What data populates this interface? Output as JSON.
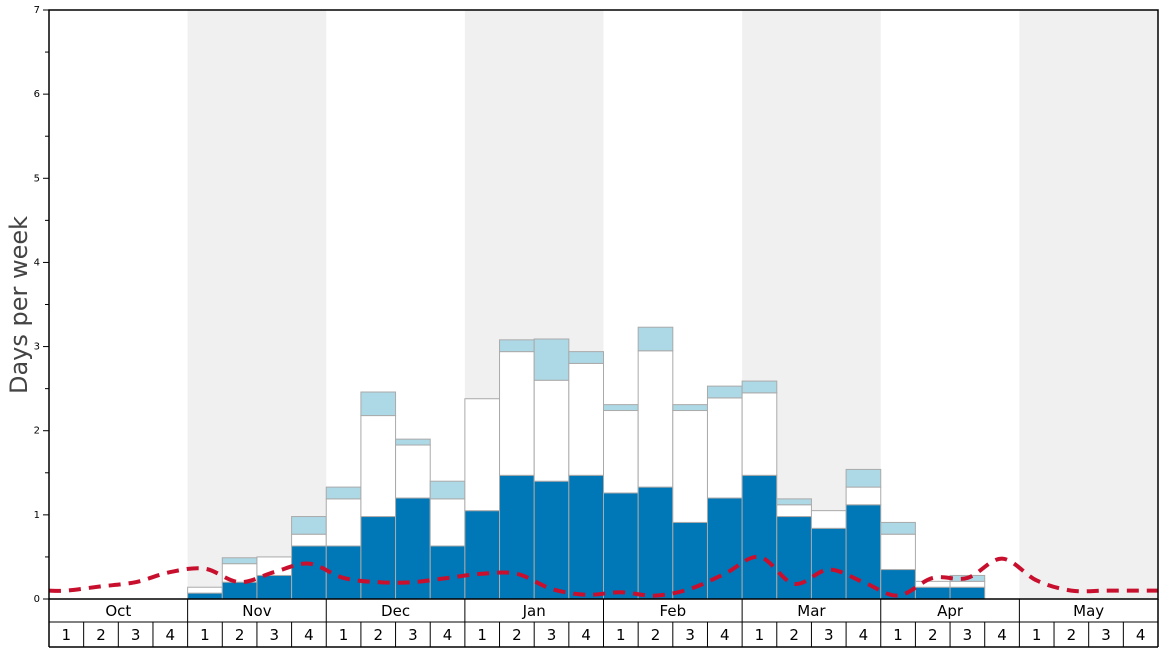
{
  "chart_data": {
    "type": "bar",
    "ylabel": "Days per week",
    "ylim": [
      0,
      7
    ],
    "yticks": [
      "0",
      "1",
      "2",
      "3",
      "4",
      "5",
      "6",
      "7"
    ],
    "months": [
      "Oct",
      "Nov",
      "Dec",
      "Jan",
      "Feb",
      "Mar",
      "Apr",
      "May"
    ],
    "weeks": [
      "1",
      "2",
      "3",
      "4"
    ],
    "shaded_months": [
      "Nov",
      "Jan",
      "Mar",
      "May"
    ],
    "colors": {
      "dark_series": "#0077b6",
      "white_series": "#ffffff",
      "light_series": "#add8e6",
      "line": "#c8102e",
      "shade": "#f0f0f0"
    },
    "series": [
      {
        "values": [
          0,
          0,
          0,
          0,
          0.07,
          0.2,
          0.28,
          0.63,
          0.63,
          0.98,
          1.2,
          0.63,
          1.05,
          1.47,
          1.4,
          1.47,
          1.26,
          1.33,
          0.91,
          1.2,
          1.47,
          0.98,
          0.84,
          1.12,
          0.35,
          0.14,
          0.14,
          0,
          0,
          0,
          0,
          0
        ]
      },
      {
        "values": [
          0,
          0,
          0,
          0,
          0.07,
          0.22,
          0.22,
          0.14,
          0.56,
          1.2,
          0.63,
          0.56,
          1.33,
          1.47,
          1.2,
          1.33,
          0.98,
          1.62,
          1.33,
          1.19,
          0.98,
          0.14,
          0.21,
          0.21,
          0.42,
          0.07,
          0.07,
          0,
          0,
          0,
          0,
          0
        ]
      },
      {
        "values": [
          0,
          0,
          0,
          0,
          0,
          0.07,
          0,
          0.21,
          0.14,
          0.28,
          0.07,
          0.21,
          0,
          0.14,
          0.49,
          0.14,
          0.07,
          0.28,
          0.07,
          0.14,
          0.14,
          0.07,
          0,
          0.21,
          0.14,
          0,
          0.07,
          0,
          0,
          0,
          0,
          0
        ]
      }
    ],
    "line": {
      "style": "dashed",
      "values": [
        0.1,
        0.15,
        0.2,
        0.32,
        0.36,
        0.2,
        0.32,
        0.42,
        0.25,
        0.2,
        0.2,
        0.25,
        0.3,
        0.3,
        0.12,
        0.05,
        0.08,
        0.04,
        0.12,
        0.3,
        0.5,
        0.18,
        0.35,
        0.2,
        0.04,
        0.25,
        0.25,
        0.48,
        0.22,
        0.1,
        0.1,
        0.1
      ]
    }
  }
}
